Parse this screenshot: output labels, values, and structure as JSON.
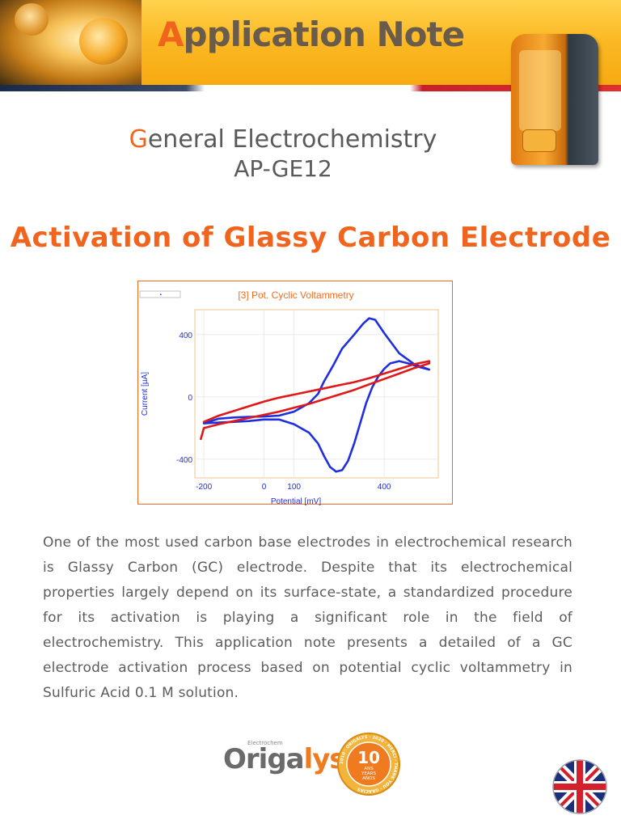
{
  "header": {
    "title_initial": "A",
    "title_rest": "pplication Note"
  },
  "category": {
    "initial": "G",
    "rest": "eneral Electrochemistry",
    "code": "AP-GE12"
  },
  "title": "Activation of Glassy Carbon Electrode",
  "chart_data": {
    "type": "line",
    "title": "[3] Pot. Cyclic Voltammetry",
    "xlabel": "Potential [mV]",
    "ylabel": "Current [µA]",
    "xlim": [
      -230,
      580
    ],
    "ylim": [
      -520,
      560
    ],
    "x_ticks": [
      -200,
      0,
      100,
      400
    ],
    "y_ticks": [
      400,
      0,
      -400
    ],
    "grid": true,
    "series": [
      {
        "color": "#1f2fe0",
        "x": [
          -200,
          -150,
          -100,
          -50,
          0,
          50,
          100,
          150,
          180,
          200,
          230,
          260,
          300,
          330,
          350,
          370,
          400,
          450,
          500,
          550,
          550,
          520,
          480,
          450,
          420,
          400,
          380,
          360,
          340,
          320,
          300,
          280,
          260,
          240,
          220,
          200,
          180,
          150,
          100,
          50,
          0,
          -50,
          -100,
          -150,
          -200
        ],
        "y": [
          -170,
          -140,
          -132,
          -128,
          -126,
          -120,
          -95,
          -40,
          20,
          100,
          200,
          310,
          400,
          470,
          505,
          495,
          410,
          280,
          210,
          175,
          175,
          190,
          215,
          230,
          215,
          180,
          130,
          60,
          -40,
          -170,
          -300,
          -410,
          -470,
          -480,
          -450,
          -380,
          -300,
          -230,
          -175,
          -145,
          -145,
          -155,
          -160,
          -165,
          -170
        ]
      },
      {
        "color": "#e01818",
        "x": [
          -200,
          -150,
          -100,
          -50,
          0,
          50,
          100,
          150,
          200,
          250,
          300,
          350,
          400,
          450,
          500,
          550,
          550,
          500,
          450,
          400,
          350,
          300,
          250,
          200,
          150,
          100,
          50,
          0,
          -50,
          -100,
          -150,
          -200,
          -210
        ],
        "y": [
          -160,
          -120,
          -90,
          -60,
          -30,
          -5,
          15,
          35,
          55,
          75,
          95,
          120,
          150,
          180,
          210,
          230,
          215,
          185,
          150,
          115,
          80,
          45,
          15,
          -15,
          -45,
          -70,
          -95,
          -115,
          -135,
          -155,
          -175,
          -200,
          -270
        ]
      }
    ]
  },
  "paragraph": "One of the most used carbon base electrodes in electrochemical research is Glassy Carbon (GC) electrode. Despite that its electrochemical properties largely depend on its surface-state, a standardized procedure for its activation is playing a significant role in the field of electrochemistry. This application note presents a detailed of a GC electrode activation process based on potential cyclic voltammetry in Sulfuric Acid 0.1 M solution.",
  "logo": {
    "small_text": "Electrochem",
    "brand_main": "Origa",
    "brand_accent": "lys",
    "seal_big": "10",
    "seal_line1": "ANS",
    "seal_line2": "YEARS",
    "seal_line3": "AÑOS",
    "seal_ring": "2010 · ORIGALYS · 2020 · MERCI · THANK YOU · GRACIAS"
  },
  "colors": {
    "accent": "#f0641e",
    "text": "#5c5c5c"
  },
  "icons": {
    "flag": "uk-flag-icon"
  }
}
